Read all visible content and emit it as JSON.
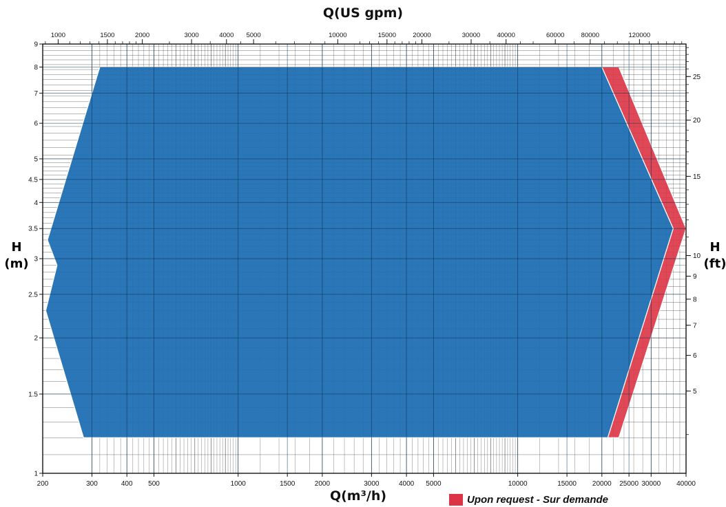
{
  "chart_data": {
    "type": "area",
    "top_axis_label": "Q(US gpm)",
    "xlabel": "Q(m³/h)",
    "ylabel_left": [
      "H",
      "(m)"
    ],
    "ylabel_right": [
      "H",
      "(ft)"
    ],
    "x_scale": "log",
    "y_scale": "log",
    "xlim": [
      200,
      40000
    ],
    "ylim": [
      1,
      9
    ],
    "grid": true,
    "x_ticks": [
      200,
      300,
      400,
      500,
      1000,
      1500,
      2000,
      3000,
      4000,
      5000,
      10000,
      15000,
      20000,
      25000,
      30000,
      40000
    ],
    "x_tick_labels": [
      "200",
      "300",
      "400",
      "500",
      "1000",
      "1500",
      "2000",
      "3000",
      "4000",
      "5000",
      "10000",
      "15000",
      "20000",
      "25000",
      "30000",
      "40000"
    ],
    "y_ticks": [
      1,
      1.5,
      2,
      2.5,
      3,
      3.5,
      4,
      4.5,
      5,
      6,
      7,
      8,
      9
    ],
    "y_tick_labels": [
      "1",
      "1.5",
      "2",
      "2.5",
      "3",
      "3.5",
      "4",
      "4.5",
      "5",
      "6",
      "7",
      "8",
      "9"
    ],
    "top_ticks_gpm": [
      1000,
      1500,
      2000,
      3000,
      4000,
      5000,
      10000,
      15000,
      20000,
      30000,
      40000,
      60000,
      80000,
      120000
    ],
    "top_tick_labels": [
      "1000",
      "1500",
      "2000",
      "3000",
      "4000",
      "5000",
      "10000",
      "15000",
      "20000",
      "30000",
      "40000",
      "60000",
      "80000",
      "120000"
    ],
    "right_ticks_ft": [
      5,
      6,
      7,
      8,
      9,
      10,
      15,
      20,
      25
    ],
    "right_tick_labels": [
      "5",
      "6",
      "7",
      "8",
      "9",
      "10",
      "15",
      "20",
      "25"
    ],
    "series": [
      {
        "color": "#1f6fb2",
        "points": [
          [
            320,
            8
          ],
          [
            20000,
            8
          ],
          [
            36000,
            3.5
          ],
          [
            21000,
            1.2
          ],
          [
            280,
            1.2
          ],
          [
            205,
            2.3
          ],
          [
            225,
            2.9
          ],
          [
            208,
            3.3
          ]
        ]
      },
      {
        "name": "Upon request - Sur demande",
        "color": "#dc3545",
        "points": [
          [
            20000,
            8
          ],
          [
            23000,
            8
          ],
          [
            40000,
            3.5
          ],
          [
            23000,
            1.2
          ],
          [
            21000,
            1.2
          ],
          [
            36000,
            3.5
          ]
        ]
      }
    ]
  },
  "legend": {
    "label": "Upon request - Sur demande",
    "color": "#dc3545"
  }
}
